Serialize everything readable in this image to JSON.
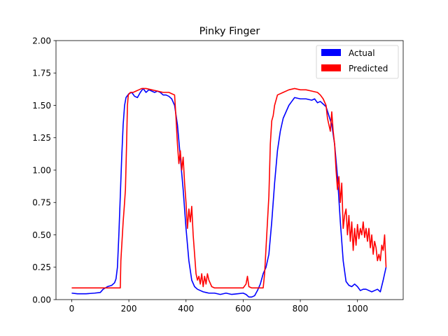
{
  "chart_data": {
    "type": "line",
    "title": "Pinky Finger",
    "xlabel": "",
    "ylabel": "",
    "xlim": [
      -55,
      1160
    ],
    "ylim": [
      0,
      2.0
    ],
    "x_ticks": [
      0,
      200,
      400,
      600,
      800,
      1000
    ],
    "y_ticks": [
      0.0,
      0.25,
      0.5,
      0.75,
      1.0,
      1.25,
      1.5,
      1.75,
      2.0
    ],
    "x_tick_labels": [
      "0",
      "200",
      "400",
      "600",
      "800",
      "1000"
    ],
    "y_tick_labels": [
      "0.00",
      "0.25",
      "0.50",
      "0.75",
      "1.00",
      "1.25",
      "1.50",
      "1.75",
      "2.00"
    ],
    "grid": false,
    "legend_position": "top-right",
    "series": [
      {
        "name": "Actual",
        "color": "#0000ff",
        "points": [
          [
            0,
            0.05
          ],
          [
            20,
            0.045
          ],
          [
            50,
            0.045
          ],
          [
            80,
            0.05
          ],
          [
            100,
            0.055
          ],
          [
            110,
            0.08
          ],
          [
            125,
            0.1
          ],
          [
            140,
            0.11
          ],
          [
            150,
            0.13
          ],
          [
            155,
            0.16
          ],
          [
            160,
            0.25
          ],
          [
            165,
            0.5
          ],
          [
            170,
            0.8
          ],
          [
            175,
            1.1
          ],
          [
            180,
            1.35
          ],
          [
            185,
            1.5
          ],
          [
            190,
            1.56
          ],
          [
            200,
            1.59
          ],
          [
            210,
            1.6
          ],
          [
            220,
            1.57
          ],
          [
            230,
            1.56
          ],
          [
            240,
            1.6
          ],
          [
            250,
            1.63
          ],
          [
            260,
            1.6
          ],
          [
            270,
            1.62
          ],
          [
            280,
            1.61
          ],
          [
            290,
            1.6
          ],
          [
            300,
            1.61
          ],
          [
            310,
            1.6
          ],
          [
            320,
            1.58
          ],
          [
            330,
            1.58
          ],
          [
            340,
            1.57
          ],
          [
            350,
            1.55
          ],
          [
            360,
            1.5
          ],
          [
            370,
            1.35
          ],
          [
            380,
            1.1
          ],
          [
            390,
            0.85
          ],
          [
            400,
            0.55
          ],
          [
            410,
            0.3
          ],
          [
            420,
            0.15
          ],
          [
            430,
            0.1
          ],
          [
            440,
            0.08
          ],
          [
            450,
            0.07
          ],
          [
            460,
            0.06
          ],
          [
            470,
            0.055
          ],
          [
            480,
            0.05
          ],
          [
            500,
            0.05
          ],
          [
            520,
            0.04
          ],
          [
            540,
            0.05
          ],
          [
            560,
            0.04
          ],
          [
            580,
            0.045
          ],
          [
            600,
            0.05
          ],
          [
            610,
            0.04
          ],
          [
            620,
            0.02
          ],
          [
            630,
            0.02
          ],
          [
            640,
            0.03
          ],
          [
            645,
            0.05
          ],
          [
            650,
            0.07
          ],
          [
            660,
            0.12
          ],
          [
            670,
            0.2
          ],
          [
            680,
            0.25
          ],
          [
            690,
            0.35
          ],
          [
            700,
            0.6
          ],
          [
            710,
            0.9
          ],
          [
            720,
            1.15
          ],
          [
            730,
            1.3
          ],
          [
            740,
            1.4
          ],
          [
            750,
            1.45
          ],
          [
            760,
            1.5
          ],
          [
            770,
            1.53
          ],
          [
            780,
            1.56
          ],
          [
            800,
            1.55
          ],
          [
            820,
            1.55
          ],
          [
            840,
            1.54
          ],
          [
            850,
            1.55
          ],
          [
            860,
            1.52
          ],
          [
            870,
            1.53
          ],
          [
            880,
            1.51
          ],
          [
            890,
            1.49
          ],
          [
            900,
            1.42
          ],
          [
            910,
            1.35
          ],
          [
            920,
            1.2
          ],
          [
            930,
            0.95
          ],
          [
            940,
            0.6
          ],
          [
            950,
            0.3
          ],
          [
            960,
            0.14
          ],
          [
            970,
            0.11
          ],
          [
            980,
            0.1
          ],
          [
            990,
            0.12
          ],
          [
            1000,
            0.1
          ],
          [
            1010,
            0.07
          ],
          [
            1020,
            0.08
          ],
          [
            1030,
            0.08
          ],
          [
            1040,
            0.07
          ],
          [
            1050,
            0.06
          ],
          [
            1060,
            0.07
          ],
          [
            1070,
            0.08
          ],
          [
            1080,
            0.06
          ],
          [
            1090,
            0.15
          ],
          [
            1100,
            0.25
          ]
        ]
      },
      {
        "name": "Predicted",
        "color": "#ff0000",
        "points": [
          [
            0,
            0.09
          ],
          [
            50,
            0.09
          ],
          [
            100,
            0.09
          ],
          [
            150,
            0.09
          ],
          [
            170,
            0.09
          ],
          [
            172,
            0.3
          ],
          [
            176,
            0.45
          ],
          [
            180,
            0.6
          ],
          [
            184,
            0.72
          ],
          [
            188,
            0.85
          ],
          [
            192,
            1.2
          ],
          [
            195,
            1.5
          ],
          [
            198,
            1.58
          ],
          [
            205,
            1.6
          ],
          [
            215,
            1.6
          ],
          [
            225,
            1.61
          ],
          [
            235,
            1.62
          ],
          [
            245,
            1.63
          ],
          [
            260,
            1.63
          ],
          [
            280,
            1.62
          ],
          [
            300,
            1.61
          ],
          [
            320,
            1.6
          ],
          [
            340,
            1.6
          ],
          [
            350,
            1.59
          ],
          [
            360,
            1.58
          ],
          [
            365,
            1.4
          ],
          [
            370,
            1.2
          ],
          [
            375,
            1.05
          ],
          [
            380,
            1.15
          ],
          [
            385,
            1.0
          ],
          [
            390,
            1.1
          ],
          [
            395,
            0.9
          ],
          [
            400,
            0.75
          ],
          [
            405,
            0.55
          ],
          [
            410,
            0.7
          ],
          [
            415,
            0.6
          ],
          [
            420,
            0.72
          ],
          [
            425,
            0.5
          ],
          [
            430,
            0.35
          ],
          [
            435,
            0.2
          ],
          [
            440,
            0.15
          ],
          [
            445,
            0.18
          ],
          [
            450,
            0.12
          ],
          [
            455,
            0.2
          ],
          [
            460,
            0.1
          ],
          [
            465,
            0.18
          ],
          [
            470,
            0.12
          ],
          [
            475,
            0.2
          ],
          [
            480,
            0.15
          ],
          [
            490,
            0.1
          ],
          [
            500,
            0.09
          ],
          [
            550,
            0.09
          ],
          [
            600,
            0.09
          ],
          [
            610,
            0.12
          ],
          [
            615,
            0.18
          ],
          [
            620,
            0.1
          ],
          [
            630,
            0.09
          ],
          [
            650,
            0.09
          ],
          [
            670,
            0.09
          ],
          [
            675,
            0.2
          ],
          [
            680,
            0.4
          ],
          [
            690,
            0.8
          ],
          [
            695,
            1.2
          ],
          [
            700,
            1.38
          ],
          [
            705,
            1.42
          ],
          [
            710,
            1.5
          ],
          [
            720,
            1.58
          ],
          [
            740,
            1.6
          ],
          [
            760,
            1.62
          ],
          [
            780,
            1.63
          ],
          [
            800,
            1.62
          ],
          [
            820,
            1.62
          ],
          [
            840,
            1.61
          ],
          [
            860,
            1.6
          ],
          [
            870,
            1.58
          ],
          [
            880,
            1.55
          ],
          [
            890,
            1.5
          ],
          [
            895,
            1.4
          ],
          [
            900,
            1.35
          ],
          [
            905,
            1.3
          ],
          [
            910,
            1.45
          ],
          [
            915,
            1.3
          ],
          [
            920,
            1.2
          ],
          [
            925,
            1.0
          ],
          [
            930,
            0.85
          ],
          [
            935,
            0.95
          ],
          [
            940,
            0.75
          ],
          [
            945,
            0.9
          ],
          [
            950,
            0.55
          ],
          [
            955,
            0.65
          ],
          [
            960,
            0.7
          ],
          [
            965,
            0.5
          ],
          [
            970,
            0.65
          ],
          [
            975,
            0.45
          ],
          [
            980,
            0.6
          ],
          [
            985,
            0.38
          ],
          [
            990,
            0.55
          ],
          [
            995,
            0.42
          ],
          [
            1000,
            0.58
          ],
          [
            1005,
            0.47
          ],
          [
            1010,
            0.55
          ],
          [
            1015,
            0.5
          ],
          [
            1020,
            0.6
          ],
          [
            1025,
            0.48
          ],
          [
            1030,
            0.55
          ],
          [
            1035,
            0.45
          ],
          [
            1040,
            0.55
          ],
          [
            1045,
            0.4
          ],
          [
            1050,
            0.5
          ],
          [
            1055,
            0.35
          ],
          [
            1060,
            0.45
          ],
          [
            1065,
            0.4
          ],
          [
            1070,
            0.3
          ],
          [
            1075,
            0.35
          ],
          [
            1080,
            0.3
          ],
          [
            1085,
            0.42
          ],
          [
            1090,
            0.38
          ],
          [
            1095,
            0.5
          ],
          [
            1100,
            0.25
          ]
        ]
      }
    ]
  }
}
